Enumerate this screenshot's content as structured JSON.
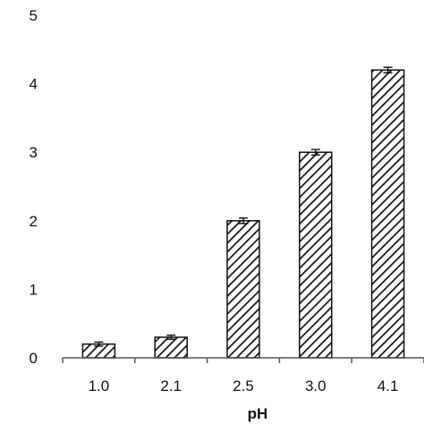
{
  "chart_data": {
    "type": "bar",
    "categories": [
      "1.0",
      "2.1",
      "2.5",
      "3.0",
      "4.1"
    ],
    "values": [
      0.2,
      0.3,
      2.0,
      3.0,
      4.2
    ],
    "errors": [
      0.03,
      0.03,
      0.04,
      0.04,
      0.04
    ],
    "title": "",
    "xlabel": "pH",
    "ylabel": "",
    "ylim": [
      0,
      5
    ],
    "yticks": [
      "0",
      "1",
      "2",
      "3",
      "4",
      "5"
    ],
    "bar_pattern": "diagonal-hatch",
    "bar_color": "#111111",
    "grid": false,
    "legend": "none"
  }
}
